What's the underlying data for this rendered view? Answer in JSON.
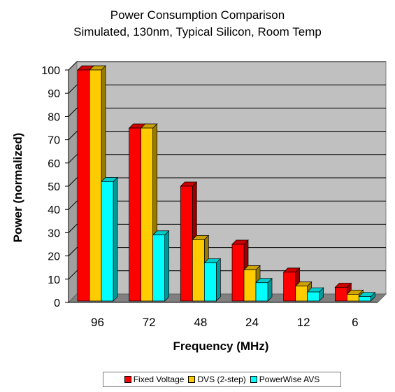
{
  "chart_data": {
    "type": "bar",
    "title": "Power Consumption Comparison",
    "subtitle": "Simulated, 130nm, Typical Silicon, Room Temp",
    "xlabel": "Frequency (MHz)",
    "ylabel": "Power (normalized)",
    "categories": [
      "96",
      "72",
      "48",
      "24",
      "12",
      "6"
    ],
    "ylim": [
      0,
      100
    ],
    "yticks": [
      "0",
      "10",
      "20",
      "30",
      "40",
      "50",
      "60",
      "70",
      "80",
      "90",
      "100"
    ],
    "grid": true,
    "legend_position": "bottom",
    "series": [
      {
        "name": "Fixed Voltage",
        "color": "#ff0000",
        "values": [
          100,
          75,
          50,
          25,
          13,
          6.5
        ]
      },
      {
        "name": "DVS (2-step)",
        "color": "#ffcc00",
        "values": [
          100,
          75,
          27,
          14,
          7,
          3.5
        ]
      },
      {
        "name": "PowerWise AVS",
        "color": "#00ffff",
        "values": [
          52,
          29,
          17,
          8.5,
          4.5,
          2.5
        ]
      }
    ]
  }
}
